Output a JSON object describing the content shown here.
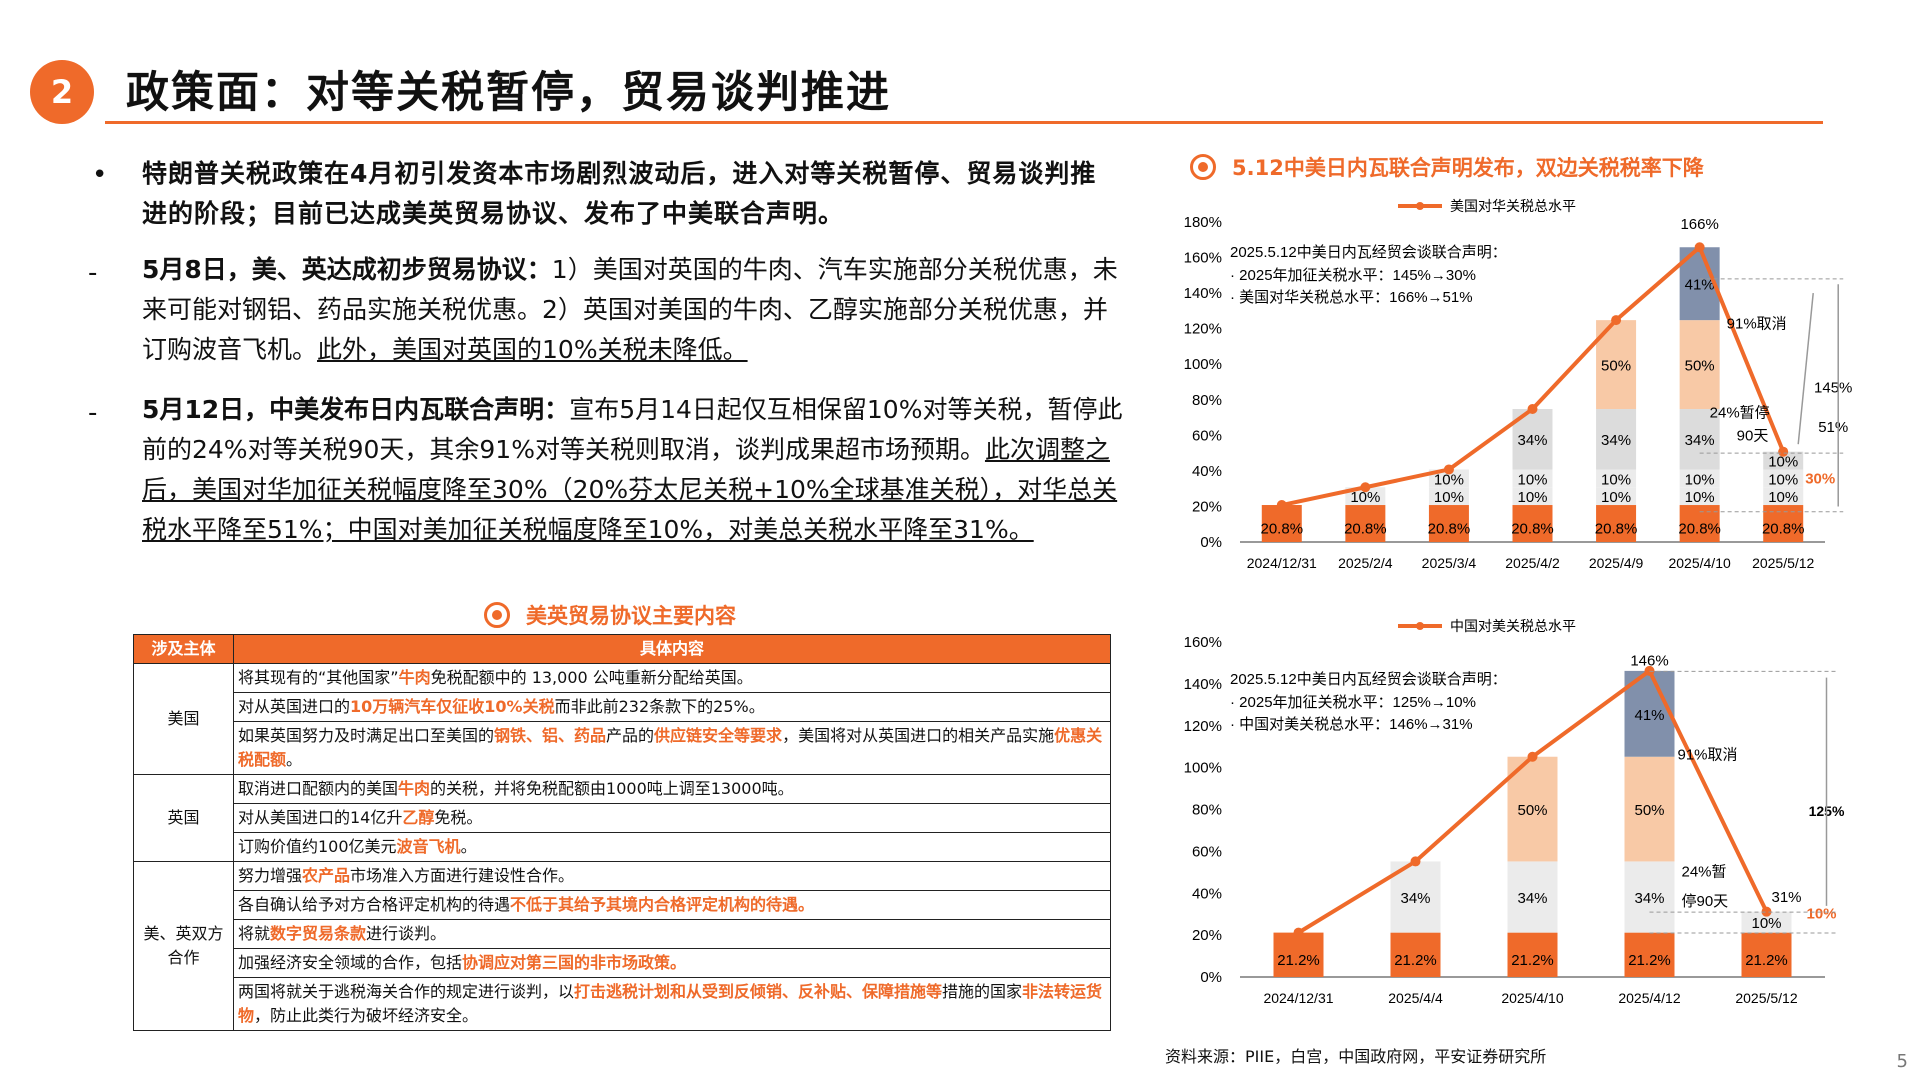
{
  "header": {
    "number": "2",
    "title": "政策面：对等关税暂停，贸易谈判推进"
  },
  "bullets": {
    "b1": "特朗普关税政策在4月初引发资本市场剧烈波动后，进入对等关税暂停、贸易谈判推进的阶段；目前已达成美英贸易协议、发布了中美联合声明。",
    "b2_head": "5月8日，美、英达成初步贸易协议：",
    "b2_body": "1）美国对英国的牛肉、汽车实施部分关税优惠，未来可能对钢铝、药品实施关税优惠。2）英国对美国的牛肉、乙醇实施部分关税优惠，并订购波音飞机。",
    "b2_under": "此外，美国对英国的10%关税未降低。",
    "b3_head": "5月12日，中美发布日内瓦联合声明：",
    "b3_body": "宣布5月14日起仅互相保留10%对等关税，暂停此前的24%对等关税90天，其余91%对等关税则取消，谈判成果超市场预期。",
    "b3_under": "此次调整之后，美国对华加征关税幅度降至30%（20%芬太尼关税+10%全球基准关税），对华总关税水平降至51%；中国对美加征关税幅度降至10%，对美总关税水平降至31%。"
  },
  "table": {
    "title": "美英贸易协议主要内容",
    "headers": [
      "涉及主体",
      "具体内容"
    ],
    "groups": [
      {
        "subject": "美国",
        "rows": [
          [
            [
              "将其现有的“其他国家”",
              0
            ],
            [
              "牛肉",
              1
            ],
            [
              "免税配额中的 13,000 公吨重新分配给英国。",
              0
            ]
          ],
          [
            [
              "对从英国进口的",
              0
            ],
            [
              "10万辆汽车仅征收10%关税",
              1
            ],
            [
              "而非此前232条款下的25%。",
              0
            ]
          ],
          [
            [
              "如果英国努力及时满足出口至美国的",
              0
            ],
            [
              "钢铁、铝、药品",
              1
            ],
            [
              "产品的",
              0
            ],
            [
              "供应链安全等要求",
              1
            ],
            [
              "，美国将对从英国进口的相关产品实施",
              0
            ],
            [
              "优惠关税配额",
              1
            ],
            [
              "。",
              0
            ]
          ]
        ]
      },
      {
        "subject": "英国",
        "rows": [
          [
            [
              "取消进口配额内的美国",
              0
            ],
            [
              "牛肉",
              1
            ],
            [
              "的关税，并将免税配额由1000吨上调至13000吨。",
              0
            ]
          ],
          [
            [
              "对从美国进口的14亿升",
              0
            ],
            [
              "乙醇",
              1
            ],
            [
              "免税。",
              0
            ]
          ],
          [
            [
              "订购价值约100亿美元",
              0
            ],
            [
              "波音飞机",
              1
            ],
            [
              "。",
              0
            ]
          ]
        ]
      },
      {
        "subject": "美、英双方合作",
        "rows": [
          [
            [
              "努力增强",
              0
            ],
            [
              "农产品",
              1
            ],
            [
              "市场准入方面进行建设性合作。",
              0
            ]
          ],
          [
            [
              "各自确认给予对方合格评定机构的待遇",
              0
            ],
            [
              "不低于其给予其境内合格评定机构的待遇。",
              1
            ]
          ],
          [
            [
              "将就",
              0
            ],
            [
              "数字贸易条款",
              1
            ],
            [
              "进行谈判。",
              0
            ]
          ],
          [
            [
              "加强经济安全领域的合作，包括",
              0
            ],
            [
              "协调应对第三国的非市场政策。",
              1
            ]
          ],
          [
            [
              "两国将就关于逃税海关合作的规定进行谈判，以",
              0
            ],
            [
              "打击逃税计划和从受到反倾销、反补贴、保障措施等",
              1
            ],
            [
              "措施的国家",
              0
            ],
            [
              "非法转运货物",
              1
            ],
            [
              "，防止此类行为破坏经济安全。",
              0
            ]
          ]
        ]
      }
    ]
  },
  "chart_data": [
    {
      "type": "bar",
      "title": "5.12中美日内瓦联合声明发布，双边关税税率下降",
      "legend": "美国对华关税总水平",
      "categories": [
        "2024/12/31",
        "2025/2/4",
        "2025/3/4",
        "2025/4/2",
        "2025/4/9",
        "2025/4/10",
        "2025/5/12"
      ],
      "ylim": [
        0,
        180
      ],
      "yticks": [
        "0%",
        "20%",
        "40%",
        "60%",
        "80%",
        "100%",
        "120%",
        "140%",
        "160%",
        "180%"
      ],
      "stacks": [
        [
          20.8
        ],
        [
          20.8,
          10
        ],
        [
          20.8,
          10,
          10
        ],
        [
          20.8,
          10,
          10,
          34
        ],
        [
          20.8,
          10,
          10,
          34,
          50
        ],
        [
          20.8,
          10,
          10,
          34,
          50,
          41
        ],
        [
          20.8,
          10,
          10,
          10
        ]
      ],
      "line": [
        20.8,
        30.8,
        40.8,
        74.8,
        124.8,
        165.8,
        50.8
      ],
      "labels": [
        [
          "20.8%"
        ],
        [
          "20.8%",
          "10%"
        ],
        [
          "20.8%",
          "10%",
          "10%"
        ],
        [
          "20.8%",
          "10%",
          "10%",
          "34%"
        ],
        [
          "20.8%",
          "10%",
          "10%",
          "34%",
          "50%"
        ],
        [
          "20.8%",
          "10%",
          "10%",
          "34%",
          "50%",
          "41%"
        ],
        [
          "20.8%",
          "10%",
          "10%",
          "10%"
        ]
      ],
      "top_label": "166%",
      "annotation": {
        "l1": "2025.5.12中美日内瓦经贸会谈联合声明：",
        "l2": "· 2025年加征关税水平：145%→30%",
        "l3": "· 美国对华关税总水平：166%→51%"
      },
      "notes": {
        "cancel": "91%取消",
        "pause": "24%暂停",
        "days": "90天",
        "diff": "145%",
        "after": "51%",
        "added": "30%",
        "stack4": "34%"
      }
    },
    {
      "type": "bar",
      "legend": "中国对美关税总水平",
      "categories": [
        "2024/12/31",
        "2025/4/4",
        "2025/4/10",
        "2025/4/12",
        "2025/5/12"
      ],
      "ylim": [
        0,
        160
      ],
      "yticks": [
        "0%",
        "20%",
        "40%",
        "60%",
        "80%",
        "100%",
        "120%",
        "140%",
        "160%"
      ],
      "stacks": [
        [
          21.2
        ],
        [
          21.2,
          34
        ],
        [
          21.2,
          34,
          50
        ],
        [
          21.2,
          34,
          50,
          41
        ],
        [
          21.2,
          10
        ]
      ],
      "line": [
        21.2,
        55.2,
        105.2,
        146.2,
        31.2
      ],
      "labels": [
        [
          "21.2%"
        ],
        [
          "21.2%",
          "34%"
        ],
        [
          "21.2%",
          "34%",
          "50%"
        ],
        [
          "21.2%",
          "34%",
          "50%",
          "41%"
        ],
        [
          "21.2%",
          "10%"
        ]
      ],
      "top_label": "146%",
      "end_label": "31%",
      "annotation": {
        "l1": "2025.5.12中美日内瓦经贸会谈联合声明：",
        "l2": "· 2025年加征关税水平：125%→10%",
        "l3": "· 中国对美关税总水平：146%→31%"
      },
      "notes": {
        "cancel": "91%取消",
        "pause": "24%暂",
        "days": "停90天",
        "diff": "125%",
        "added": "10%",
        "stack4": "34%"
      }
    }
  ],
  "source": "资料来源：PIIE，白宫，中国政府网，平安证券研究所",
  "page": "5",
  "colors": {
    "accent": "#ef6a2a",
    "peach": "#f8c9a6",
    "grey": "#dcdcdc",
    "navy": "#8190ab",
    "lightgrey": "#ebebeb"
  }
}
